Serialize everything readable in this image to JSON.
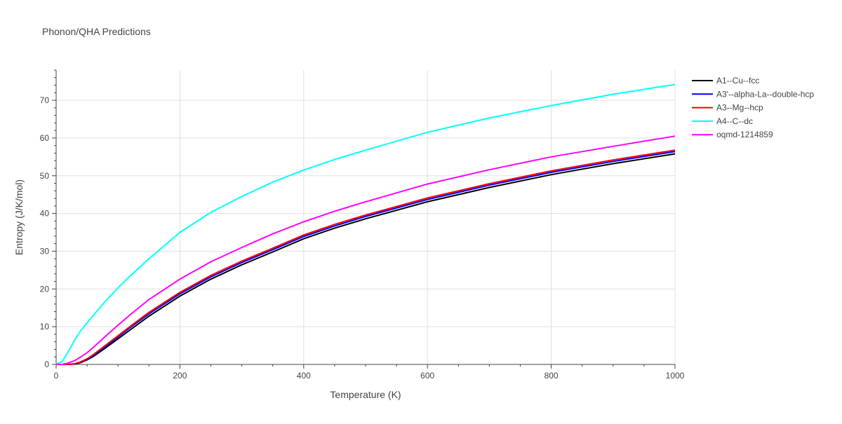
{
  "chart_data": {
    "type": "line",
    "title": "Phonon/QHA Predictions",
    "xlabel": "Temperature (K)",
    "ylabel": "Entropy (J/K/mol)",
    "xlim": [
      0,
      1000
    ],
    "ylim": [
      0,
      78
    ],
    "xticks": [
      0,
      200,
      400,
      600,
      800,
      1000
    ],
    "yticks": [
      0,
      10,
      20,
      30,
      40,
      50,
      60,
      70
    ],
    "grid": true,
    "legend_position": "top-right",
    "series": [
      {
        "name": "A1--Cu--fcc",
        "color": "#000000",
        "points": [
          [
            0,
            0
          ],
          [
            20,
            0
          ],
          [
            30,
            0.1
          ],
          [
            40,
            0.5
          ],
          [
            50,
            1.2
          ],
          [
            60,
            2.1
          ],
          [
            80,
            4.4
          ],
          [
            100,
            6.8
          ],
          [
            120,
            9.2
          ],
          [
            150,
            12.8
          ],
          [
            200,
            18.1
          ],
          [
            250,
            22.6
          ],
          [
            300,
            26.4
          ],
          [
            350,
            29.8
          ],
          [
            400,
            33.3
          ],
          [
            450,
            36.1
          ],
          [
            500,
            38.6
          ],
          [
            600,
            43.1
          ],
          [
            700,
            46.9
          ],
          [
            800,
            50.3
          ],
          [
            900,
            53.2
          ],
          [
            1000,
            55.8
          ]
        ]
      },
      {
        "name": "A3'--alpha-La--double-hcp",
        "color": "#0000ff",
        "points": [
          [
            0,
            0
          ],
          [
            20,
            0
          ],
          [
            30,
            0.15
          ],
          [
            40,
            0.6
          ],
          [
            50,
            1.4
          ],
          [
            60,
            2.4
          ],
          [
            80,
            4.8
          ],
          [
            100,
            7.3
          ],
          [
            120,
            9.8
          ],
          [
            150,
            13.4
          ],
          [
            200,
            18.7
          ],
          [
            250,
            23.2
          ],
          [
            300,
            27.0
          ],
          [
            350,
            30.4
          ],
          [
            400,
            33.9
          ],
          [
            450,
            36.7
          ],
          [
            500,
            39.2
          ],
          [
            600,
            43.7
          ],
          [
            700,
            47.5
          ],
          [
            800,
            50.9
          ],
          [
            900,
            53.8
          ],
          [
            1000,
            56.4
          ]
        ]
      },
      {
        "name": "A3--Mg--hcp",
        "color": "#ff0000",
        "points": [
          [
            0,
            0
          ],
          [
            20,
            0
          ],
          [
            30,
            0.2
          ],
          [
            40,
            0.7
          ],
          [
            50,
            1.5
          ],
          [
            60,
            2.6
          ],
          [
            80,
            5.1
          ],
          [
            100,
            7.6
          ],
          [
            120,
            10.1
          ],
          [
            150,
            13.8
          ],
          [
            200,
            19.1
          ],
          [
            250,
            23.6
          ],
          [
            300,
            27.4
          ],
          [
            350,
            30.8
          ],
          [
            400,
            34.3
          ],
          [
            450,
            37.1
          ],
          [
            500,
            39.6
          ],
          [
            600,
            44.1
          ],
          [
            700,
            47.9
          ],
          [
            800,
            51.3
          ],
          [
            900,
            54.2
          ],
          [
            1000,
            56.8
          ]
        ]
      },
      {
        "name": "A4--C--dc",
        "color": "#00ffff",
        "points": [
          [
            0,
            0
          ],
          [
            10,
            0.8
          ],
          [
            20,
            3.5
          ],
          [
            30,
            6.5
          ],
          [
            40,
            9.0
          ],
          [
            60,
            13.0
          ],
          [
            80,
            16.8
          ],
          [
            100,
            20.3
          ],
          [
            120,
            23.5
          ],
          [
            150,
            28.0
          ],
          [
            170,
            30.8
          ],
          [
            200,
            35.0
          ],
          [
            250,
            40.3
          ],
          [
            300,
            44.5
          ],
          [
            350,
            48.3
          ],
          [
            400,
            51.5
          ],
          [
            450,
            54.3
          ],
          [
            500,
            56.8
          ],
          [
            600,
            61.5
          ],
          [
            700,
            65.3
          ],
          [
            800,
            68.6
          ],
          [
            900,
            71.6
          ],
          [
            1000,
            74.2
          ]
        ]
      },
      {
        "name": "oqmd-1214859",
        "color": "#ff00ff",
        "points": [
          [
            0,
            0
          ],
          [
            10,
            0
          ],
          [
            20,
            0.4
          ],
          [
            30,
            1.0
          ],
          [
            40,
            2.0
          ],
          [
            50,
            3.1
          ],
          [
            60,
            4.5
          ],
          [
            80,
            7.5
          ],
          [
            100,
            10.4
          ],
          [
            120,
            13.2
          ],
          [
            150,
            17.2
          ],
          [
            200,
            22.6
          ],
          [
            250,
            27.2
          ],
          [
            300,
            31.0
          ],
          [
            350,
            34.6
          ],
          [
            400,
            37.8
          ],
          [
            450,
            40.6
          ],
          [
            500,
            43.1
          ],
          [
            600,
            47.8
          ],
          [
            700,
            51.6
          ],
          [
            800,
            55.0
          ],
          [
            900,
            57.8
          ],
          [
            1000,
            60.5
          ]
        ]
      }
    ]
  }
}
